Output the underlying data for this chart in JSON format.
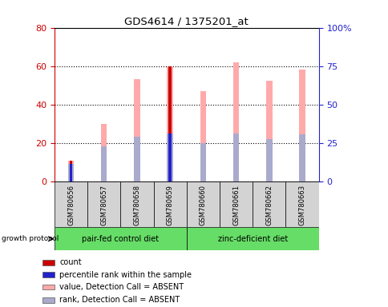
{
  "title": "GDS4614 / 1375201_at",
  "samples": [
    "GSM780656",
    "GSM780657",
    "GSM780658",
    "GSM780659",
    "GSM780660",
    "GSM780661",
    "GSM780662",
    "GSM780663"
  ],
  "pink_bar_heights": [
    10.5,
    30,
    53,
    60,
    47,
    62,
    52.5,
    58
  ],
  "blue_segment_heights": [
    9,
    18,
    23,
    25,
    20,
    25,
    22,
    24.5
  ],
  "red_bar_heights": [
    10.5,
    0,
    0,
    60,
    0,
    0,
    0,
    0
  ],
  "dark_blue_heights": [
    9,
    0,
    0,
    25,
    0,
    0,
    0,
    0
  ],
  "ylim_left": [
    0,
    80
  ],
  "ylim_right": [
    0,
    100
  ],
  "yticks_left": [
    0,
    20,
    40,
    60,
    80
  ],
  "yticks_right": [
    0,
    25,
    50,
    75,
    100
  ],
  "ytick_labels_right": [
    "0",
    "25",
    "50",
    "75",
    "100%"
  ],
  "group1_label": "pair-fed control diet",
  "group2_label": "zinc-deficient diet",
  "protocol_label": "growth protocol",
  "legend_items": [
    {
      "color": "#cc0000",
      "label": "count"
    },
    {
      "color": "#2222cc",
      "label": "percentile rank within the sample"
    },
    {
      "color": "#ffaaaa",
      "label": "value, Detection Call = ABSENT"
    },
    {
      "color": "#aaaacc",
      "label": "rank, Detection Call = ABSENT"
    }
  ],
  "light_pink_color": "#ffaaaa",
  "light_blue_color": "#aaaacc",
  "red_color": "#cc0000",
  "blue_color": "#2222cc",
  "left_axis_color": "#cc0000",
  "right_axis_color": "#2222cc",
  "sample_area_color": "#d3d3d3",
  "group_box_color": "#66dd66"
}
